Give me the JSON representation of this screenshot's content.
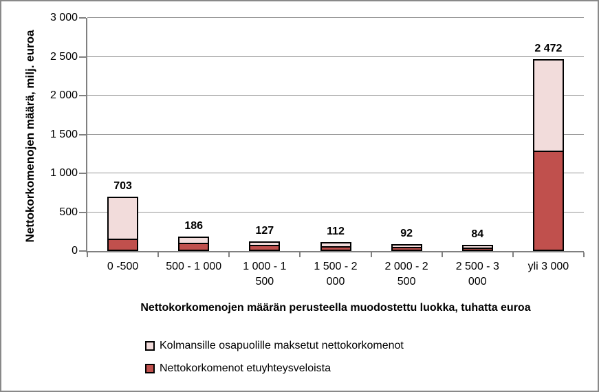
{
  "chart_data": {
    "type": "bar",
    "stacked": true,
    "title": "",
    "xlabel": "Nettokorkomenojen määrän perusteella muodostettu luokka, tuhatta euroa",
    "ylabel": "Nettokorkomenojen määrä, milj. euroa",
    "ylim": [
      0,
      3000
    ],
    "ytick_step": 500,
    "ytick_labels": [
      "0",
      "500",
      "1 000",
      "1 500",
      "2 000",
      "2 500",
      "3 000"
    ],
    "grid": true,
    "legend_position": "bottom",
    "categories": [
      "0 -500",
      "500 - 1 000",
      "1 000 - 1 500",
      "1 500 - 2 000",
      "2 000 - 2 500",
      "2 500 - 3 000",
      "yli 3 000"
    ],
    "category_label_lines": [
      [
        "0 -500"
      ],
      [
        "500 - 1 000"
      ],
      [
        "1 000 - 1",
        "500"
      ],
      [
        "1 500 - 2",
        "000"
      ],
      [
        "2 000 - 2",
        "500"
      ],
      [
        "2 500 - 3",
        "000"
      ],
      [
        "yli 3 000"
      ]
    ],
    "totals": [
      703,
      186,
      127,
      112,
      92,
      84,
      2472
    ],
    "total_labels": [
      "703",
      "186",
      "127",
      "112",
      "92",
      "84",
      "2 472"
    ],
    "series": [
      {
        "name": "Kolmansille osapuolille maksetut nettokorkomenot",
        "color": "#f2dcdb",
        "values": [
          565,
          96,
          69,
          72,
          57,
          56,
          1202
        ]
      },
      {
        "name": "Nettokorkomenot etuyhteysveloista",
        "color": "#c0504d",
        "values": [
          138,
          90,
          58,
          40,
          35,
          28,
          1270
        ]
      }
    ],
    "stack_bottom_to_top_series_indexes": [
      1,
      0
    ],
    "colors": {
      "bar_border": "#000000",
      "axis_line": "#808080",
      "gridline": "#969696",
      "frame_border": "#898989",
      "background": "#ffffff",
      "text": "#000000"
    }
  }
}
